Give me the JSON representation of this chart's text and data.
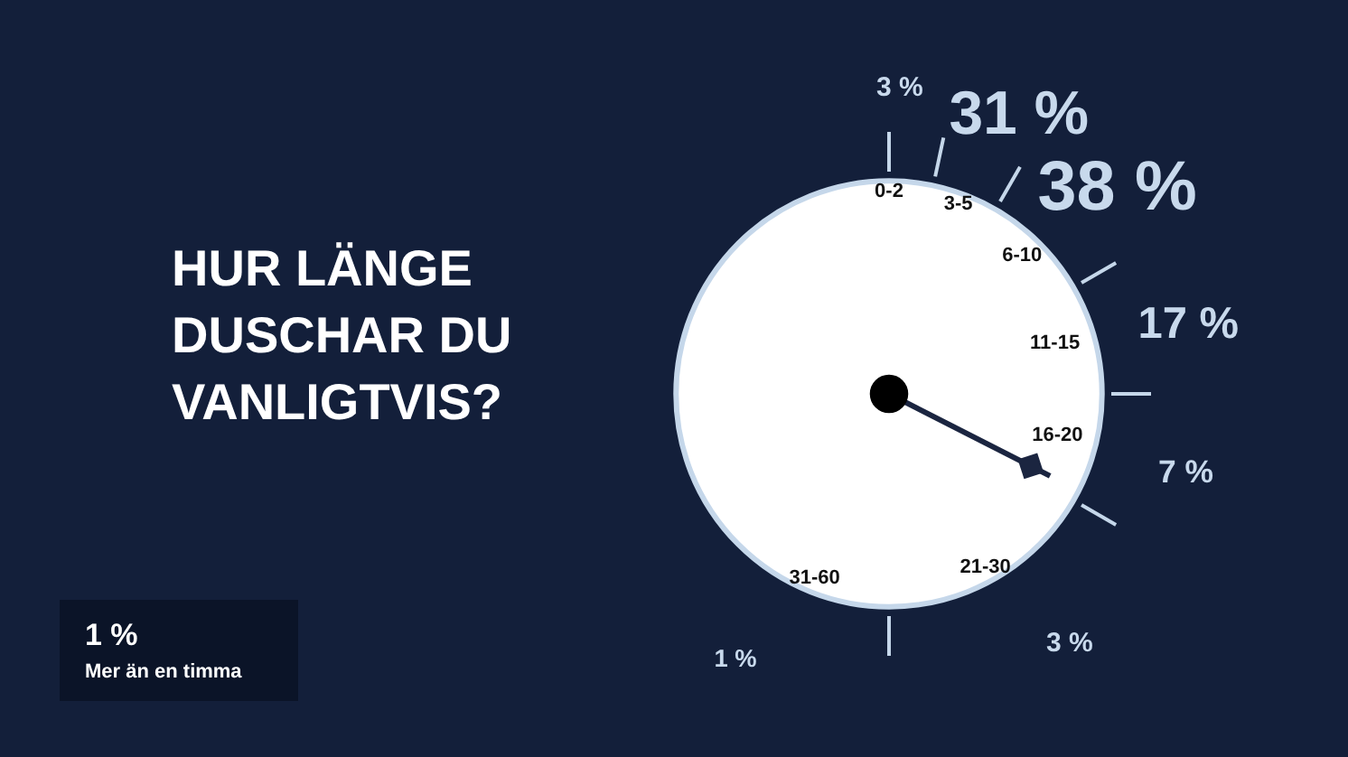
{
  "chart_data": {
    "type": "other",
    "title": "HUR LÄNGE DUSCHAR DU VANLIGTVIS?",
    "categories": [
      "0-2",
      "3-5",
      "6-10",
      "11-15",
      "16-20",
      "21-30",
      "31-60",
      "Mer än en timma"
    ],
    "values": [
      3,
      31,
      38,
      17,
      7,
      3,
      1,
      1
    ],
    "value_labels": [
      "3 %",
      "31 %",
      "38 %",
      "17 %",
      "7 %",
      "3 %",
      "1 %",
      "1 %"
    ]
  }
}
